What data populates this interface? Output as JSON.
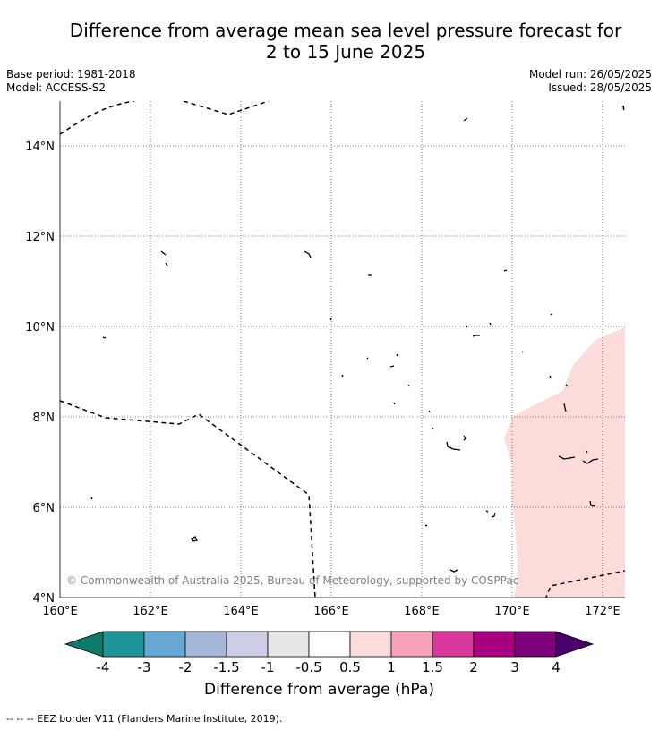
{
  "title_line1": "Difference from average mean sea level pressure forecast for",
  "title_line2": "2 to 15 June 2025",
  "meta": {
    "base_period": "Base period: 1981-2018",
    "model": "Model: ACCESS-S2",
    "model_run": "Model run: 26/05/2025",
    "issued": "Issued: 28/05/2025"
  },
  "map": {
    "lon_labels": [
      "160°E",
      "162°E",
      "164°E",
      "166°E",
      "168°E",
      "170°E",
      "172°E"
    ],
    "lat_labels": [
      "4°N",
      "6°N",
      "8°N",
      "10°N",
      "12°N",
      "14°N"
    ],
    "copyright": "© Commonwealth of Australia 2025, Bureau of Meteorology, supported by COSPPac",
    "anomaly_fill_color": "#fcdcdb",
    "anomaly_category": "0.5 to 1"
  },
  "colorbar": {
    "label": "Difference from average (hPa)",
    "ticks": [
      "-4",
      "-3",
      "-2",
      "-1.5",
      "-1",
      "-0.5",
      "0.5",
      "1",
      "1.5",
      "2",
      "3",
      "4"
    ],
    "colors": [
      "#0d7a6b",
      "#1f9599",
      "#68a9d4",
      "#a6b8da",
      "#cdcde6",
      "#e9e6ea",
      "#ffffff",
      "#fcdcdb",
      "#f7a1bb",
      "#d9399d",
      "#a8007e",
      "#7b0079",
      "#4a006b"
    ]
  },
  "footer": "--  --  -- EEZ border V11 (Flanders Marine Institute, 2019)."
}
